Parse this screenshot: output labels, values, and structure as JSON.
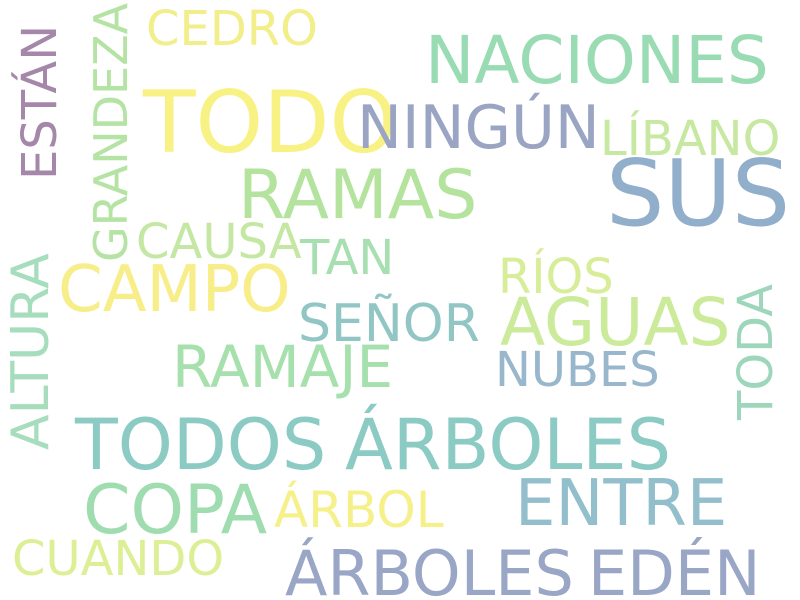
{
  "words": [
    {
      "text": "SUS",
      "color": "#91aecb",
      "orientation": "horizontal"
    },
    {
      "text": "TODO",
      "color": "#f8f184",
      "orientation": "horizontal"
    },
    {
      "text": "NACIONES",
      "color": "#99dbb2",
      "orientation": "horizontal"
    },
    {
      "text": "NINGÚN",
      "color": "#9aa4c3",
      "orientation": "horizontal"
    },
    {
      "text": "LÍBANO",
      "color": "#c7e8a0",
      "orientation": "horizontal"
    },
    {
      "text": "CEDRO",
      "color": "#f2ee8a",
      "orientation": "horizontal"
    },
    {
      "text": "ESTÁN",
      "color": "#a487a9",
      "orientation": "vertical"
    },
    {
      "text": "GRANDEZA",
      "color": "#b4e3a4",
      "orientation": "vertical"
    },
    {
      "text": "RAMAS",
      "color": "#b4e39e",
      "orientation": "horizontal"
    },
    {
      "text": "CAUSA",
      "color": "#c4e8a3",
      "orientation": "horizontal"
    },
    {
      "text": "TAN",
      "color": "#a7dfb1",
      "orientation": "horizontal"
    },
    {
      "text": "RÍOS",
      "color": "#d8ed98",
      "orientation": "horizontal"
    },
    {
      "text": "CAMPO",
      "color": "#f7ee8a",
      "orientation": "horizontal"
    },
    {
      "text": "AGUAS",
      "color": "#cbeb9a",
      "orientation": "horizontal"
    },
    {
      "text": "SEÑOR",
      "color": "#91c6c4",
      "orientation": "horizontal"
    },
    {
      "text": "TODA",
      "color": "#9ed6bc",
      "orientation": "vertical"
    },
    {
      "text": "ALTURA",
      "color": "#a5ddbd",
      "orientation": "vertical"
    },
    {
      "text": "RAMAJE",
      "color": "#a6e0ad",
      "orientation": "horizontal"
    },
    {
      "text": "NUBES",
      "color": "#98b7cc",
      "orientation": "horizontal"
    },
    {
      "text": "TODOS",
      "color": "#8ccbc4",
      "orientation": "horizontal"
    },
    {
      "text": "ÁRBOLES",
      "color": "#8ccbc4",
      "orientation": "horizontal"
    },
    {
      "text": "COPA",
      "color": "#9fdcb0",
      "orientation": "horizontal"
    },
    {
      "text": "ÁRBOL",
      "color": "#f6f08b",
      "orientation": "horizontal"
    },
    {
      "text": "ENTRE",
      "color": "#92bfcb",
      "orientation": "horizontal"
    },
    {
      "text": "CUANDO",
      "color": "#dcef95",
      "orientation": "horizontal"
    },
    {
      "text": "ÁRBOLES",
      "color": "#9aa6c6",
      "orientation": "horizontal"
    },
    {
      "text": "EDÉN",
      "color": "#9aa6c6",
      "orientation": "horizontal"
    }
  ]
}
